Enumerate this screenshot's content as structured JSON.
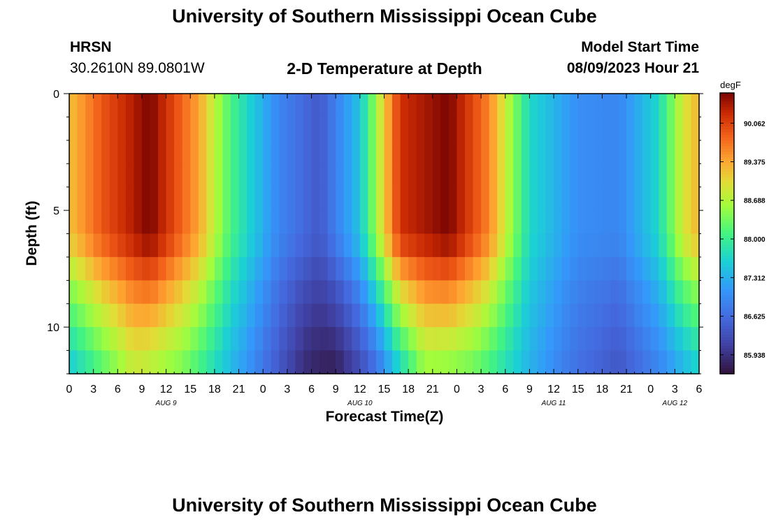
{
  "header": {
    "title": "University of Southern Mississippi Ocean Cube",
    "station": "HRSN",
    "coords": "30.2610N  89.0801W",
    "plot_title": "2-D Temperature at Depth",
    "model_label": "Model Start Time",
    "model_time": "08/09/2023 Hour 21"
  },
  "footer": {
    "title": "University of Southern Mississippi Ocean Cube"
  },
  "chart_data": {
    "type": "heatmap",
    "title": "2-D Temperature at Depth",
    "xlabel": "Forecast Time(Z)",
    "ylabel": "Depth (ft)",
    "x_range_hours": [
      0,
      78
    ],
    "y_range_ft": [
      0,
      12
    ],
    "x_tick_labels": [
      "0",
      "3",
      "6",
      "9",
      "12",
      "15",
      "18",
      "21",
      "0",
      "3",
      "6",
      "9",
      "12",
      "15",
      "18",
      "21",
      "0",
      "3",
      "6",
      "9",
      "12",
      "15",
      "18",
      "21",
      "0",
      "3",
      "6"
    ],
    "y_ticks": [
      0,
      5,
      10
    ],
    "date_labels": [
      {
        "label": "AUG 9",
        "hour": 12
      },
      {
        "label": "AUG 10",
        "hour": 36
      },
      {
        "label": "AUG 11",
        "hour": 60
      },
      {
        "label": "AUG 12",
        "hour": 75
      }
    ],
    "colorbar": {
      "unit": "degF",
      "min": 85.6,
      "max": 90.6,
      "ticks": [
        "90.062",
        "89.375",
        "88.688",
        "88.000",
        "87.312",
        "86.625",
        "85.938"
      ]
    },
    "grid": {
      "cols": 78,
      "rows": 12,
      "cell_hours": 1,
      "cell_ft": 1
    },
    "surface_cycle": [
      {
        "hour": 0,
        "temp": 89.2
      },
      {
        "hour": 4,
        "temp": 89.9
      },
      {
        "hour": 10,
        "temp": 90.6
      },
      {
        "hour": 16,
        "temp": 89.4
      },
      {
        "hour": 20,
        "temp": 88.1
      },
      {
        "hour": 26,
        "temp": 86.9
      },
      {
        "hour": 31,
        "temp": 86.4
      },
      {
        "hour": 36,
        "temp": 87.5
      },
      {
        "hour": 41,
        "temp": 90.2
      },
      {
        "hour": 47,
        "temp": 90.6
      },
      {
        "hour": 52,
        "temp": 89.6
      },
      {
        "hour": 57,
        "temp": 87.7
      },
      {
        "hour": 63,
        "temp": 87.0
      },
      {
        "hour": 68,
        "temp": 86.9
      },
      {
        "hour": 73,
        "temp": 87.7
      },
      {
        "hour": 76,
        "temp": 88.9
      },
      {
        "hour": 78,
        "temp": 89.3
      }
    ],
    "depth_profile": [
      {
        "depth": 0,
        "weight": 0.0
      },
      {
        "depth": 6,
        "weight": 0.0
      },
      {
        "depth": 7,
        "weight": 0.15
      },
      {
        "depth": 8,
        "weight": 0.35
      },
      {
        "depth": 9,
        "weight": 0.5
      },
      {
        "depth": 10,
        "weight": 0.65
      },
      {
        "depth": 11,
        "weight": 0.8
      },
      {
        "depth": 12,
        "weight": 0.9
      }
    ],
    "deep_cycle": [
      {
        "hour": 0,
        "temp": 87.3
      },
      {
        "hour": 8,
        "temp": 88.6
      },
      {
        "hour": 14,
        "temp": 88.2
      },
      {
        "hour": 22,
        "temp": 87.0
      },
      {
        "hour": 29,
        "temp": 85.8
      },
      {
        "hour": 33,
        "temp": 85.6
      },
      {
        "hour": 38,
        "temp": 86.4
      },
      {
        "hour": 44,
        "temp": 88.3
      },
      {
        "hour": 50,
        "temp": 88.1
      },
      {
        "hour": 56,
        "temp": 87.4
      },
      {
        "hour": 62,
        "temp": 86.7
      },
      {
        "hour": 68,
        "temp": 86.3
      },
      {
        "hour": 74,
        "temp": 86.9
      },
      {
        "hour": 78,
        "temp": 87.4
      }
    ]
  }
}
